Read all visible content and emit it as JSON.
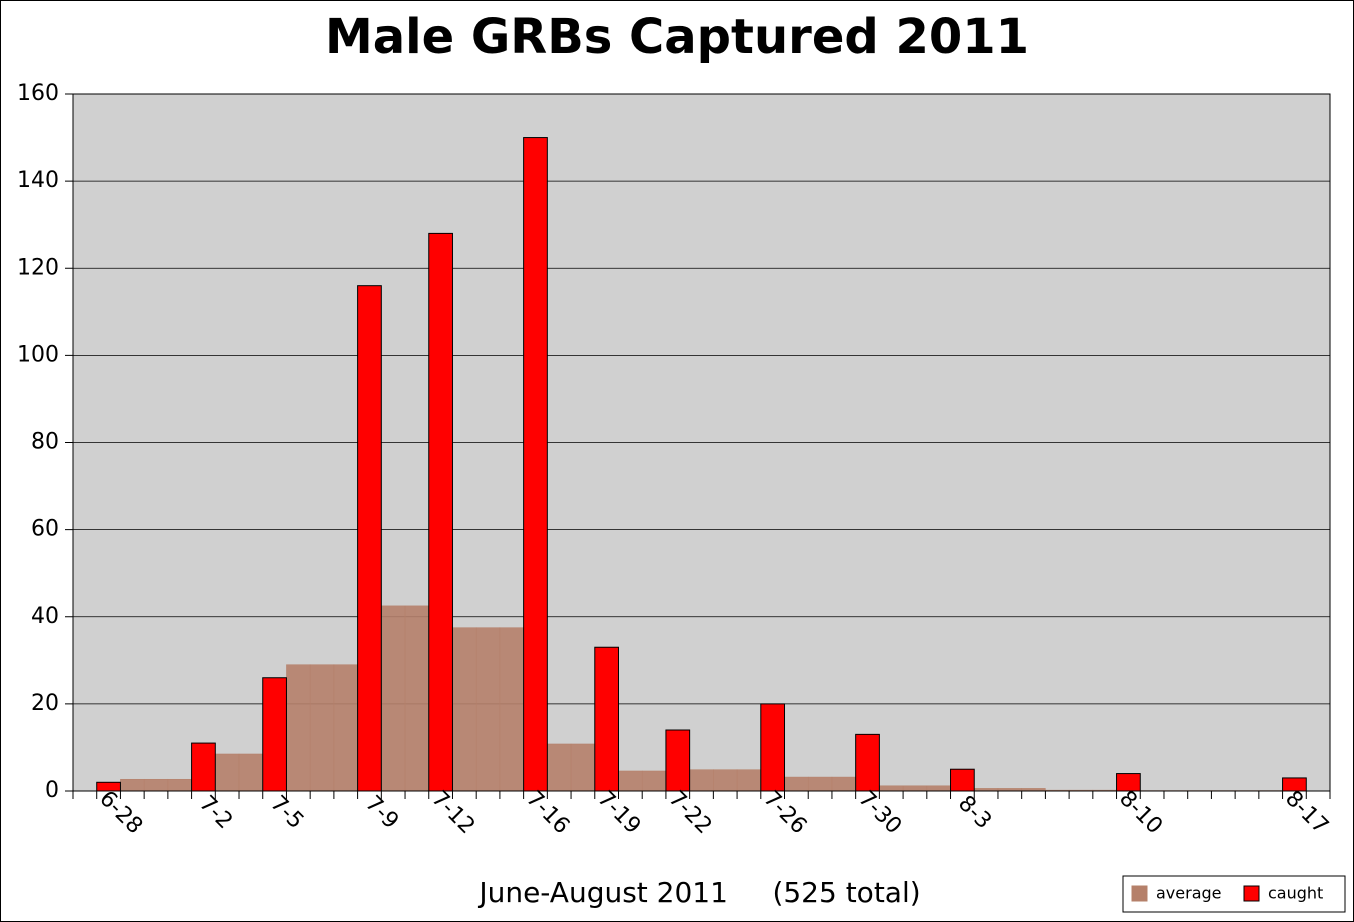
{
  "chart_data": {
    "type": "bar",
    "title": "Male GRBs Captured 2011",
    "x_label": "June-August 2011     (525 total)",
    "categories": [
      null,
      "6-28",
      null,
      null,
      null,
      "7-2",
      null,
      null,
      "7-5",
      null,
      null,
      null,
      "7-9",
      null,
      null,
      "7-12",
      null,
      null,
      null,
      "7-16",
      null,
      null,
      "7-19",
      null,
      null,
      "7-22",
      null,
      null,
      null,
      "7-26",
      null,
      null,
      null,
      "7-30",
      null,
      null,
      null,
      "8-3",
      null,
      null,
      null,
      null,
      null,
      null,
      "8-10",
      null,
      null,
      null,
      null,
      null,
      null,
      "8-17",
      null
    ],
    "series": [
      {
        "name": "average",
        "color": "#b5806a",
        "values": [
          null,
          null,
          2.7,
          2.7,
          2.7,
          null,
          8.5,
          8.5,
          null,
          29,
          29,
          29,
          null,
          42.5,
          42.5,
          null,
          37.5,
          37.5,
          37.5,
          null,
          10.8,
          10.8,
          null,
          4.6,
          4.6,
          null,
          4.9,
          4.9,
          4.9,
          null,
          3.2,
          3.2,
          3.2,
          null,
          1.2,
          1.2,
          1.2,
          null,
          0.6,
          0.6,
          0.6,
          0.2,
          0.2,
          0.2,
          null,
          0.1,
          0.1,
          0.1,
          0.1,
          0.1,
          0.1,
          null,
          null
        ]
      },
      {
        "name": "caught",
        "color": "#ff0000",
        "values": [
          null,
          2,
          null,
          null,
          null,
          11,
          null,
          null,
          26,
          null,
          null,
          null,
          116,
          null,
          null,
          128,
          null,
          null,
          null,
          150,
          null,
          null,
          33,
          null,
          null,
          14,
          null,
          null,
          null,
          20,
          null,
          null,
          null,
          13,
          null,
          null,
          null,
          5,
          null,
          null,
          null,
          null,
          null,
          null,
          4,
          null,
          null,
          null,
          null,
          null,
          null,
          3,
          null
        ]
      }
    ],
    "ylim": [
      0,
      160
    ],
    "yticks": [
      0,
      20,
      40,
      60,
      80,
      100,
      120,
      140,
      160
    ],
    "grid": true,
    "legend": "bottom-right"
  }
}
